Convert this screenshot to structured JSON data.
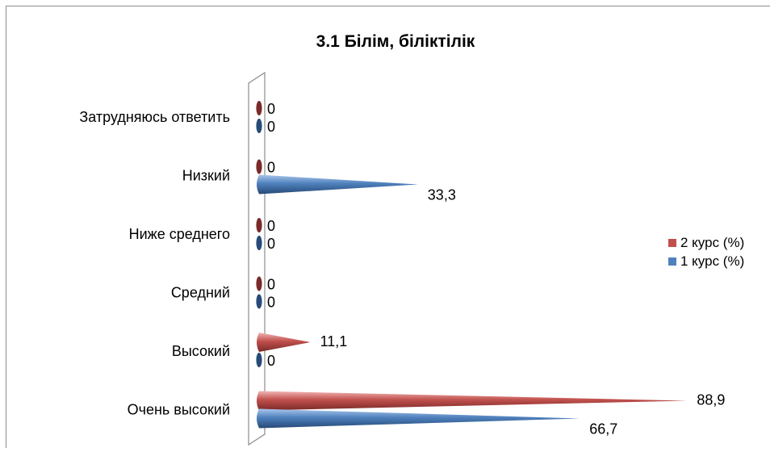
{
  "chart_data": {
    "type": "bar",
    "orientation": "horizontal",
    "title": "3.1 Білім, біліктілік",
    "xlabel": "",
    "ylabel": "",
    "xlim": [
      0,
      100
    ],
    "categories": [
      "Затрудняюсь ответить",
      "Низкий",
      "Ниже среднего",
      "Средний",
      "Высокий",
      "Очень высокий"
    ],
    "series": [
      {
        "name": "2 курс (%)",
        "color": "#c0504d",
        "values": [
          0,
          0,
          0,
          0,
          11.1,
          88.9
        ]
      },
      {
        "name": "1 курс (%)",
        "color": "#4f81bd",
        "values": [
          0,
          33.3,
          0,
          0,
          0,
          66.7
        ]
      }
    ],
    "legend_position": "right",
    "grid": false
  },
  "title": "3.1 Білім, біліктілік",
  "legend": {
    "items": [
      {
        "label": "2 курс (%)",
        "color": "#c0504d"
      },
      {
        "label": "1 курс (%)",
        "color": "#4f81bd"
      }
    ]
  }
}
